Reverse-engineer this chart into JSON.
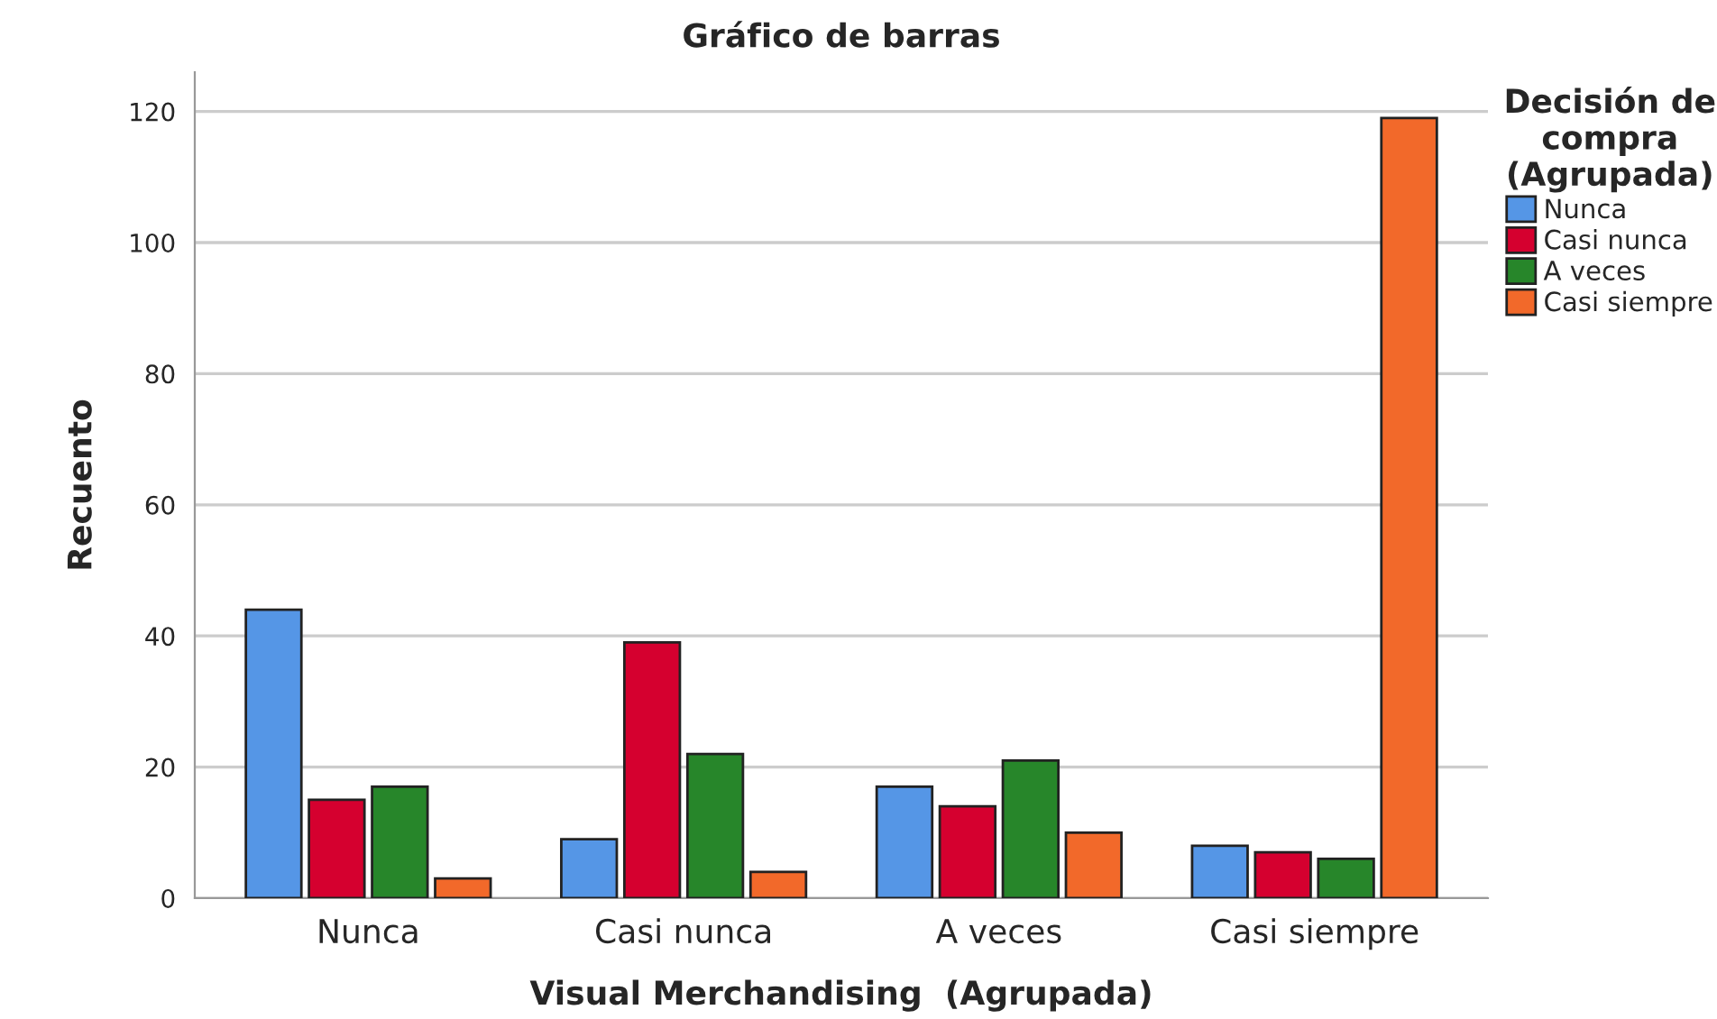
{
  "chart_data": {
    "type": "bar",
    "title": "Gráfico de barras",
    "xlabel": "Visual Merchandising  (Agrupada)",
    "ylabel": "Recuento",
    "legend_title": "Decisión de\ncompra\n(Agrupada)",
    "categories": [
      "Nunca",
      "Casi nunca",
      "A veces",
      "Casi siempre"
    ],
    "series": [
      {
        "name": "Nunca",
        "color": "#5596e6",
        "values": [
          44,
          9,
          17,
          8
        ]
      },
      {
        "name": "Casi nunca",
        "color": "#d5002f",
        "values": [
          15,
          39,
          14,
          7
        ]
      },
      {
        "name": "A veces",
        "color": "#27862a",
        "values": [
          17,
          22,
          21,
          6
        ]
      },
      {
        "name": "Casi siempre",
        "color": "#f2692a",
        "values": [
          3,
          4,
          10,
          119
        ]
      }
    ],
    "ylim": [
      0,
      126
    ],
    "yticks": [
      0,
      20,
      40,
      60,
      80,
      100,
      120
    ],
    "grid": "y",
    "legend": "top right"
  }
}
